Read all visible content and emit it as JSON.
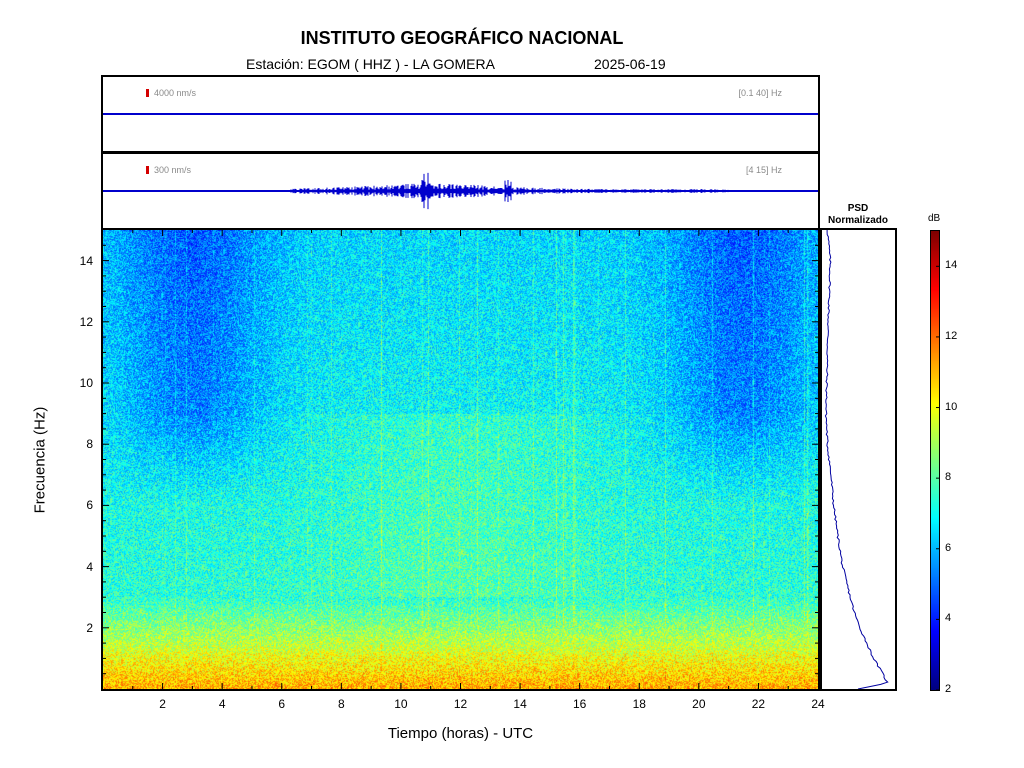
{
  "header": {
    "title": "INSTITUTO GEOGRÁFICO NACIONAL",
    "station": "Estación:  EGOM ( HHZ ) - LA GOMERA",
    "date": "2025-06-19"
  },
  "traces": [
    {
      "scale_label": "4000 nm/s",
      "band_label": "[0.1 40] Hz",
      "scale_color": "#d40000",
      "line_color": "#0000cc"
    },
    {
      "scale_label": "300 nm/s",
      "band_label": "[4 15] Hz",
      "scale_color": "#d40000",
      "line_color": "#0000cc"
    }
  ],
  "psd": {
    "title_line1": "PSD",
    "title_line2": "Normalizado",
    "line_color": "#0000a0"
  },
  "chart_data": {
    "type": "heatmap",
    "title": "INSTITUTO GEOGRÁFICO NACIONAL",
    "xlabel": "Tiempo (horas) - UTC",
    "ylabel": "Frecuencia  (Hz)",
    "xlim": [
      0,
      24
    ],
    "ylim": [
      0,
      15
    ],
    "x_ticks": [
      2,
      4,
      6,
      8,
      10,
      12,
      14,
      16,
      18,
      20,
      22,
      24
    ],
    "y_ticks": [
      2,
      4,
      6,
      8,
      10,
      12,
      14
    ],
    "colorbar": {
      "label": "dB",
      "range": [
        2,
        15
      ],
      "ticks": [
        2,
        4,
        6,
        8,
        10,
        12,
        14
      ],
      "colormap": "jet"
    },
    "psd_profile": {
      "frequency_hz": [
        15,
        14.5,
        14,
        13,
        12,
        11,
        10,
        9,
        8,
        7,
        6,
        5,
        4,
        3,
        2.5,
        2,
        1.5,
        1,
        0.5,
        0.2,
        0
      ],
      "relative_level": [
        0.05,
        0.07,
        0.09,
        0.08,
        0.06,
        0.05,
        0.04,
        0.03,
        0.05,
        0.1,
        0.14,
        0.2,
        0.27,
        0.38,
        0.44,
        0.52,
        0.62,
        0.72,
        0.85,
        0.92,
        0.5
      ]
    }
  },
  "colors": {
    "frame": "#000000",
    "trace": "#0000cc",
    "scale_bar": "#d40000"
  }
}
